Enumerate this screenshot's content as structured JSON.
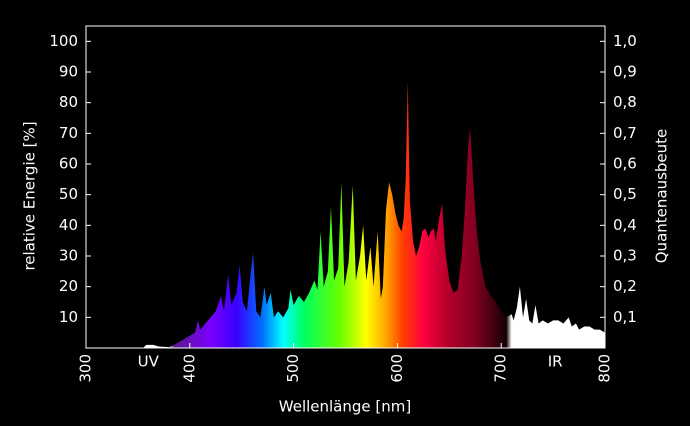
{
  "chart_data": {
    "type": "area",
    "x_label": "Wellenlänge [nm]",
    "y_label": "relative Energie [%]",
    "y2_label": "Quantenausbeute",
    "annotations": [
      {
        "text": "UV",
        "x": 360
      },
      {
        "text": "IR",
        "x": 752
      }
    ],
    "xlim": [
      300,
      800
    ],
    "xticks": [
      300,
      400,
      500,
      600,
      700,
      800
    ],
    "ylim": [
      0,
      105
    ],
    "yticks": [
      10,
      20,
      30,
      40,
      50,
      60,
      70,
      80,
      90,
      100
    ],
    "y2lim": [
      0,
      1.05
    ],
    "y2ticks": [
      {
        "value": 0.1,
        "label": "0,1"
      },
      {
        "value": 0.2,
        "label": "0,2"
      },
      {
        "value": 0.3,
        "label": "0,3"
      },
      {
        "value": 0.4,
        "label": "0,4"
      },
      {
        "value": 0.5,
        "label": "0,5"
      },
      {
        "value": 0.6,
        "label": "0,6"
      },
      {
        "value": 0.7,
        "label": "0,7"
      },
      {
        "value": 0.8,
        "label": "0,8"
      },
      {
        "value": 0.9,
        "label": "0,9"
      },
      {
        "value": 1.0,
        "label": "1,0"
      }
    ],
    "x": [
      300,
      355,
      358,
      365,
      370,
      380,
      385,
      390,
      395,
      400,
      405,
      408,
      410,
      415,
      420,
      425,
      430,
      433,
      437,
      440,
      445,
      448,
      451,
      455,
      458,
      461,
      464,
      468,
      472,
      474,
      478,
      481,
      485,
      490,
      495,
      497,
      500,
      505,
      510,
      515,
      520,
      523,
      526,
      529,
      533,
      536,
      539,
      543,
      546,
      549,
      553,
      557,
      560,
      564,
      567,
      570,
      574,
      577,
      581,
      584,
      586,
      589,
      592,
      595,
      598,
      601,
      604,
      606,
      608,
      610,
      612,
      615,
      618,
      621,
      624,
      627,
      630,
      632,
      635,
      637,
      640,
      643,
      646,
      650,
      654,
      658,
      662,
      665,
      668,
      670,
      673,
      676,
      680,
      685,
      690,
      695,
      700,
      705,
      710,
      712,
      715,
      718,
      721,
      724,
      727,
      730,
      733,
      736,
      740,
      745,
      750,
      755,
      760,
      765,
      768,
      772,
      775,
      780,
      785,
      790,
      795,
      800
    ],
    "values": [
      0,
      0,
      1,
      1,
      0.5,
      0.3,
      1,
      2,
      3,
      4,
      5,
      9,
      6,
      8,
      10,
      12,
      17,
      12,
      24,
      14,
      18,
      27,
      15,
      12,
      22,
      31,
      12,
      10,
      20,
      14,
      18,
      10,
      12,
      10,
      13,
      19,
      14,
      17,
      15,
      18,
      22,
      19,
      38,
      20,
      25,
      46,
      22,
      26,
      54,
      20,
      28,
      53,
      22,
      30,
      40,
      22,
      33,
      20,
      38,
      16,
      20,
      45,
      54,
      50,
      44,
      40,
      38,
      42,
      55,
      87,
      48,
      35,
      30,
      33,
      38,
      39,
      36,
      38,
      39,
      35,
      42,
      47,
      32,
      22,
      18,
      19,
      30,
      45,
      65,
      72,
      55,
      40,
      28,
      20,
      17,
      15,
      12,
      10,
      11,
      9,
      13,
      20,
      10,
      16,
      9,
      8,
      14,
      8,
      9,
      8,
      9,
      9,
      8,
      10,
      7,
      8,
      6,
      7,
      7,
      6,
      6,
      5
    ]
  }
}
